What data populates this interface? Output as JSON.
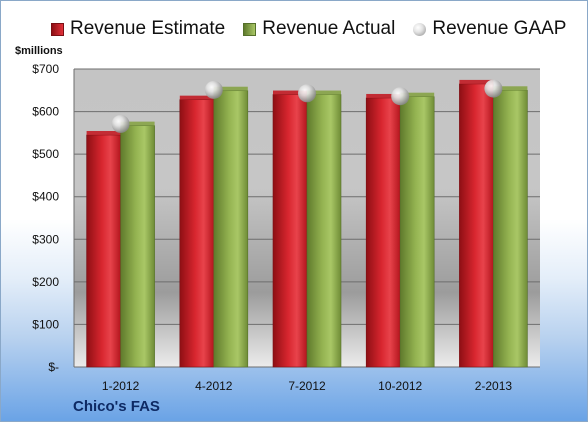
{
  "legend": {
    "estimate": "Revenue Estimate",
    "actual": "Revenue Actual",
    "gaap": "Revenue GAAP"
  },
  "unit_label": "$millions",
  "company": "Chico's FAS",
  "colors": {
    "estimate": "#d0202a",
    "actual": "#8fae4e",
    "gaap": "#c8c8c8"
  },
  "chart_data": {
    "type": "bar",
    "categories": [
      "1-2012",
      "4-2012",
      "7-2012",
      "10-2012",
      "2-2013"
    ],
    "series": [
      {
        "name": "Revenue Estimate",
        "values": [
          545,
          628,
          640,
          632,
          665
        ]
      },
      {
        "name": "Revenue Actual",
        "values": [
          567,
          649,
          640,
          635,
          650
        ]
      },
      {
        "name": "Revenue GAAP",
        "values": [
          571,
          651,
          643,
          636,
          654
        ]
      }
    ],
    "ylabel": "$millions",
    "ylim": [
      0,
      700
    ],
    "yticks": [
      0,
      100,
      200,
      300,
      400,
      500,
      600,
      700
    ],
    "ytick_labels": [
      "$-",
      "$100",
      "$200",
      "$300",
      "$400",
      "$500",
      "$600",
      "$700"
    ],
    "grid": true,
    "legend_position": "top"
  }
}
